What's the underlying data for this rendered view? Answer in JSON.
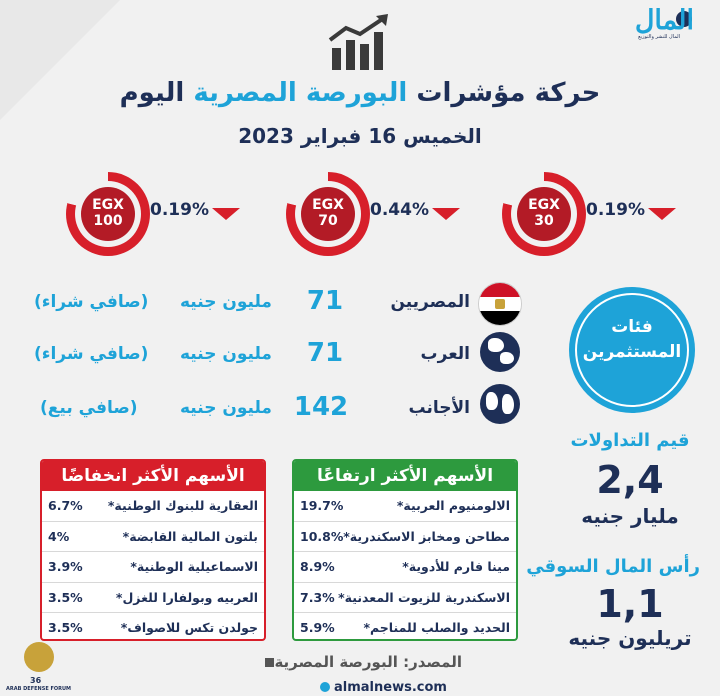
{
  "logo": {
    "brand": "المال",
    "tagline": "المال للنشر والتوزيع"
  },
  "title": {
    "part1": "حركة مؤشرات",
    "part2": "البورصة المصرية",
    "part3": "اليوم"
  },
  "date": "الخميس 16 فبراير 2023",
  "indices": [
    {
      "line1": "EGX",
      "line2": "100",
      "change": "0.19%"
    },
    {
      "line1": "EGX",
      "line2": "70",
      "change": "0.44%"
    },
    {
      "line1": "EGX",
      "line2": "30",
      "change": "0.19%"
    }
  ],
  "investors": {
    "category_label": "فئات المستثمرين",
    "rows": [
      {
        "name": "المصريين",
        "amount": "71",
        "unit": "مليون جنيه",
        "note": "(صافي شراء)"
      },
      {
        "name": "العرب",
        "amount": "71",
        "unit": "مليون جنيه",
        "note": "(صافي شراء)"
      },
      {
        "name": "الأجانب",
        "amount": "142",
        "unit": "مليون جنيه",
        "note": "(صافي بيع)"
      }
    ]
  },
  "losers": {
    "title": "الأسهم الأكثر انخفاضًا",
    "rows": [
      {
        "name": "العقارية للبنوك الوطنية*",
        "value": "6.7%"
      },
      {
        "name": "بلتون المالية القابضة*",
        "value": "4%"
      },
      {
        "name": "الاسماعيلية الوطنية*",
        "value": "3.9%"
      },
      {
        "name": "العربيه وبولفارا للغزل*",
        "value": "3.5%"
      },
      {
        "name": "جولدن تكس للاصواف*",
        "value": "3.5%"
      }
    ]
  },
  "gainers": {
    "title": "الأسهم الأكثر ارتفاعًا",
    "rows": [
      {
        "name": "الالومنيوم العربية*",
        "value": "19.7%"
      },
      {
        "name": "مطاحن ومخابز الاسكندرية*",
        "value": "10.8%"
      },
      {
        "name": "مينا فارم للأدوية*",
        "value": "8.9%"
      },
      {
        "name": "الاسكندرية للزيوت المعدنية*",
        "value": "7.3%"
      },
      {
        "name": "الحديد والصلب للمناجم*",
        "value": "5.9%"
      }
    ]
  },
  "trading_value": {
    "label": "قيم التداولات",
    "amount": "2,4",
    "unit": "مليار جنيه"
  },
  "market_cap": {
    "label": "رأس المال السوقي",
    "amount": "1,1",
    "unit": "تريليون جنيه"
  },
  "source": "المصدر: البورصة المصرية",
  "website": "almalnews.com",
  "forum": {
    "number": "36",
    "name": "ARAB DEFENSE FORUM"
  },
  "colors": {
    "navy": "#1e2f57",
    "blue": "#1ea3d8",
    "red": "#d71f2a",
    "green": "#2d9a3e"
  }
}
